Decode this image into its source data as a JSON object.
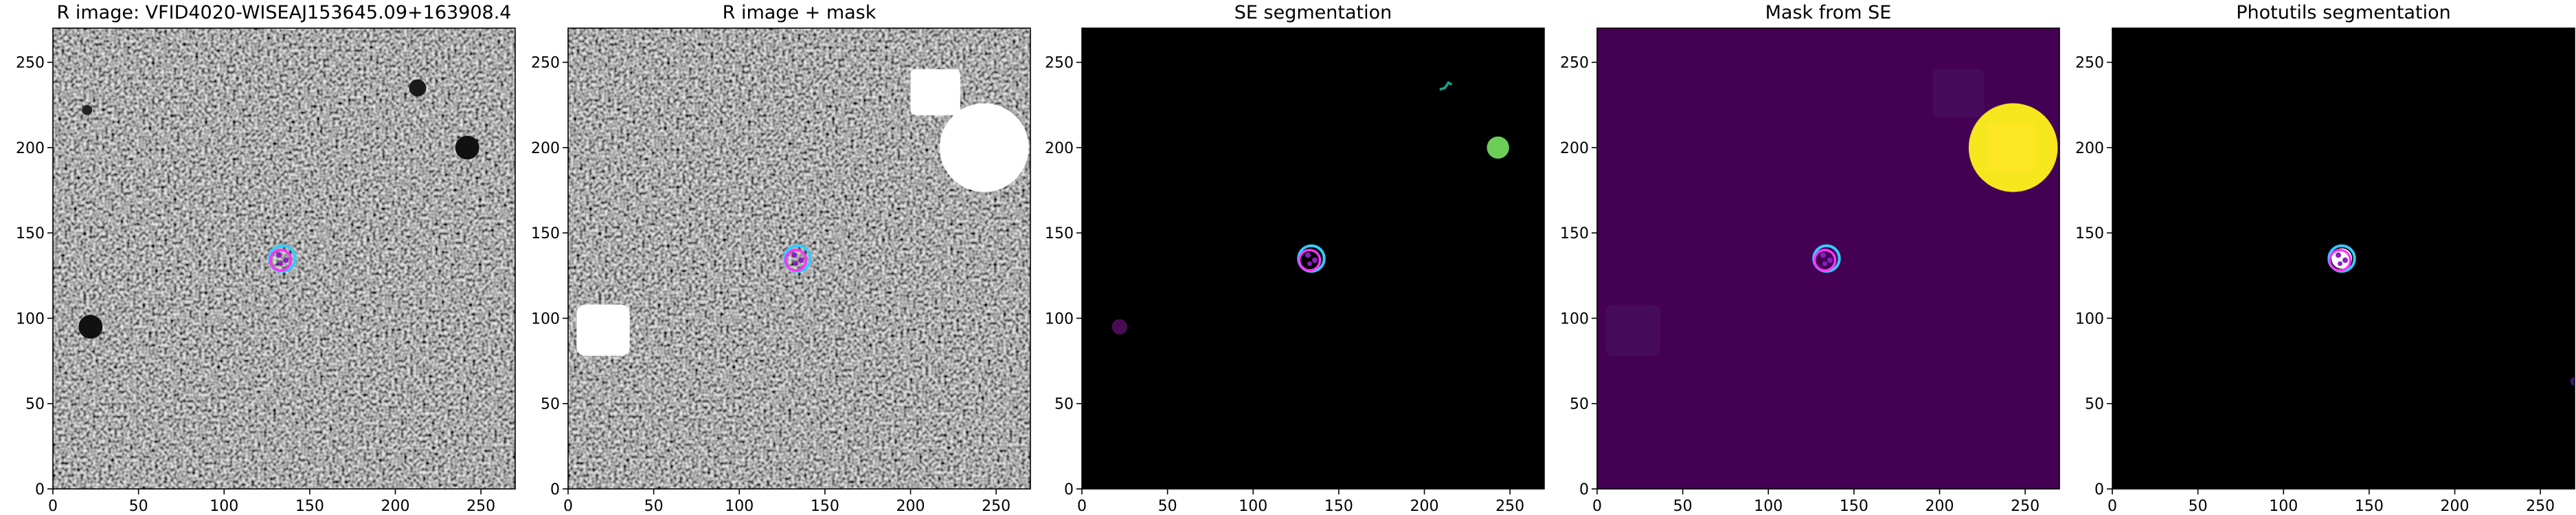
{
  "chart_data": [
    {
      "type": "image",
      "title": "R image: VFID4020-WISEAJ153645.09+163908.4",
      "xlim": [
        0,
        270
      ],
      "ylim": [
        0,
        270
      ],
      "xticks": [
        0,
        50,
        100,
        150,
        200,
        250
      ],
      "yticks": [
        0,
        50,
        100,
        150,
        200,
        250
      ]
    },
    {
      "type": "image",
      "title": "R image + mask",
      "xlim": [
        0,
        270
      ],
      "ylim": [
        0,
        270
      ],
      "xticks": [
        0,
        50,
        100,
        150,
        200,
        250
      ],
      "yticks": [
        0,
        50,
        100,
        150,
        200,
        250
      ]
    },
    {
      "type": "image",
      "title": "SE segmentation",
      "xlim": [
        0,
        270
      ],
      "ylim": [
        0,
        270
      ],
      "xticks": [
        0,
        50,
        100,
        150,
        200,
        250
      ],
      "yticks": [
        0,
        50,
        100,
        150,
        200,
        250
      ]
    },
    {
      "type": "image",
      "title": "Mask from SE",
      "xlim": [
        0,
        270
      ],
      "ylim": [
        0,
        270
      ],
      "xticks": [
        0,
        50,
        100,
        150,
        200,
        250
      ],
      "yticks": [
        0,
        50,
        100,
        150,
        200,
        250
      ]
    },
    {
      "type": "image",
      "title": "Photutils segmentation",
      "xlim": [
        0,
        270
      ],
      "ylim": [
        0,
        270
      ],
      "xticks": [
        0,
        50,
        100,
        150,
        200,
        250
      ],
      "yticks": [
        0,
        50,
        100,
        150,
        200,
        250
      ]
    }
  ]
}
